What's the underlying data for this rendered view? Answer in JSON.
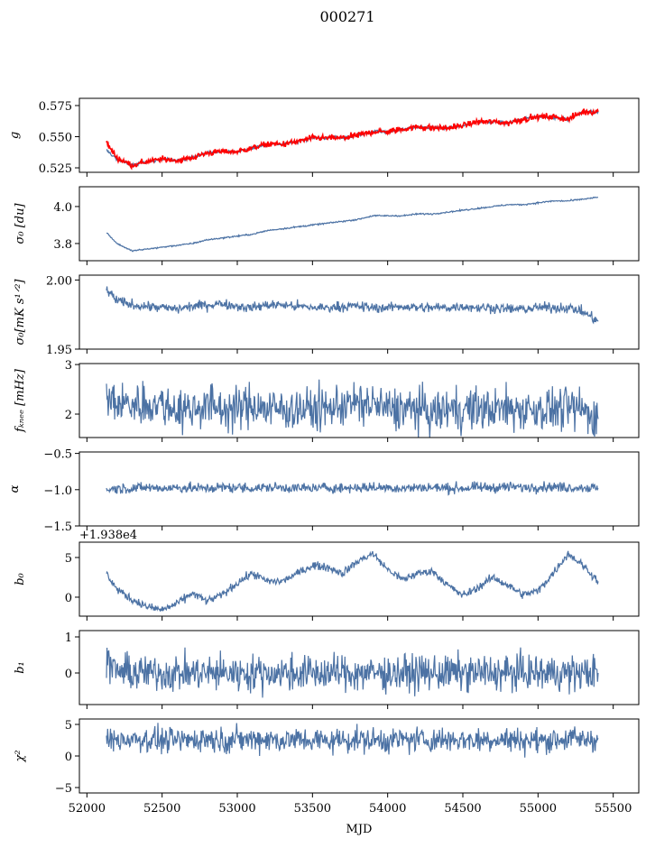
{
  "chart_data": {
    "type": "line",
    "title": "000271",
    "xlabel": "MJD",
    "xlim": [
      51950,
      55670
    ],
    "xticks": [
      52000,
      52500,
      53000,
      53500,
      54000,
      54500,
      55000,
      55500
    ],
    "xtick_labels": [
      "52000",
      "52500",
      "53000",
      "53500",
      "54000",
      "54500",
      "55000",
      "55500"
    ],
    "x": [
      52130,
      52200,
      52300,
      52400,
      52500,
      52600,
      52700,
      52800,
      52900,
      53000,
      53100,
      53200,
      53300,
      53400,
      53500,
      53600,
      53700,
      53800,
      53900,
      54000,
      54100,
      54200,
      54300,
      54400,
      54500,
      54600,
      54700,
      54800,
      54900,
      55000,
      55100,
      55200,
      55300,
      55400
    ],
    "panels": [
      {
        "ylabel": "g",
        "ylim": [
          0.5214,
          0.5808
        ],
        "yticks": [
          0.525,
          0.55,
          0.575
        ],
        "ytick_labels": [
          "0.525",
          "0.550",
          "0.575"
        ],
        "series": [
          {
            "name": "g-model",
            "color": "#4c72a4",
            "noise_std": 0.0006,
            "values": [
              0.539,
              0.532,
              0.527,
              0.53,
              0.532,
              0.531,
              0.533,
              0.537,
              0.538,
              0.538,
              0.541,
              0.544,
              0.544,
              0.546,
              0.549,
              0.549,
              0.549,
              0.551,
              0.554,
              0.554,
              0.556,
              0.558,
              0.557,
              0.557,
              0.559,
              0.562,
              0.562,
              0.561,
              0.564,
              0.566,
              0.566,
              0.564,
              0.57,
              0.57
            ]
          },
          {
            "name": "g-data",
            "color": "#ff0000",
            "noise_std": 0.0012,
            "values": [
              0.545,
              0.533,
              0.527,
              0.53,
              0.532,
              0.531,
              0.533,
              0.537,
              0.538,
              0.538,
              0.541,
              0.544,
              0.544,
              0.546,
              0.549,
              0.549,
              0.549,
              0.551,
              0.554,
              0.554,
              0.556,
              0.558,
              0.557,
              0.557,
              0.559,
              0.562,
              0.562,
              0.561,
              0.564,
              0.566,
              0.566,
              0.564,
              0.57,
              0.57
            ]
          }
        ]
      },
      {
        "ylabel": "σ₀ [du]",
        "ylim": [
          3.707,
          4.107
        ],
        "yticks": [
          3.8,
          4.0
        ],
        "ytick_labels": [
          "3.8",
          "4.0"
        ],
        "series": [
          {
            "name": "sigma0-du",
            "color": "#4c72a4",
            "noise_std": 0.002,
            "values": [
              3.86,
              3.8,
              3.76,
              3.77,
              3.78,
              3.79,
              3.8,
              3.82,
              3.83,
              3.84,
              3.85,
              3.87,
              3.88,
              3.89,
              3.9,
              3.91,
              3.92,
              3.93,
              3.95,
              3.95,
              3.95,
              3.96,
              3.96,
              3.97,
              3.98,
              3.99,
              4.0,
              4.01,
              4.01,
              4.02,
              4.03,
              4.03,
              4.04,
              4.05
            ]
          }
        ]
      },
      {
        "ylabel": "σ₀[mK s¹ᐟ²]",
        "ylim": [
          1.95,
          2.0035
        ],
        "yticks": [
          1.95,
          2.0
        ],
        "ytick_labels": [
          "1.95",
          "2.00"
        ],
        "series": [
          {
            "name": "sigma0-mk",
            "color": "#4c72a4",
            "noise_std": 0.0018,
            "values": [
              1.993,
              1.985,
              1.982,
              1.981,
              1.98,
              1.979,
              1.981,
              1.982,
              1.983,
              1.981,
              1.98,
              1.982,
              1.982,
              1.981,
              1.98,
              1.98,
              1.981,
              1.981,
              1.98,
              1.98,
              1.981,
              1.98,
              1.98,
              1.98,
              1.981,
              1.98,
              1.98,
              1.979,
              1.979,
              1.98,
              1.98,
              1.98,
              1.977,
              1.97
            ]
          }
        ]
      },
      {
        "ylabel": "fₖₙₑₑ [mHz]",
        "ylim": [
          1.527,
          3.02
        ],
        "yticks": [
          2,
          3
        ],
        "ytick_labels": [
          "2",
          "3"
        ],
        "series": [
          {
            "name": "fknee",
            "color": "#4c72a4",
            "noise_std": 0.22,
            "values": [
              2.3,
              2.2,
              2.2,
              2.2,
              2.2,
              2.1,
              2.1,
              2.2,
              2.1,
              2.1,
              2.2,
              2.1,
              2.1,
              2.1,
              2.1,
              2.1,
              2.2,
              2.2,
              2.2,
              2.1,
              2.1,
              2.1,
              2.0,
              2.1,
              2.1,
              2.1,
              2.1,
              2.1,
              2.1,
              2.1,
              2.1,
              2.1,
              2.1,
              1.9
            ]
          }
        ]
      },
      {
        "ylabel": "α",
        "ylim": [
          -1.5,
          -0.48
        ],
        "yticks": [
          -1.5,
          -1.0,
          -0.5
        ],
        "ytick_labels": [
          "−1.5",
          "−1.0",
          "−0.5"
        ],
        "series": [
          {
            "name": "alpha",
            "color": "#4c72a4",
            "noise_std": 0.035,
            "values": [
              -1.0,
              -0.98,
              -0.98,
              -0.97,
              -0.98,
              -0.97,
              -0.98,
              -0.98,
              -0.97,
              -0.97,
              -0.98,
              -0.97,
              -0.97,
              -0.98,
              -0.98,
              -0.97,
              -0.98,
              -0.97,
              -0.97,
              -0.97,
              -0.98,
              -0.97,
              -0.97,
              -0.98,
              -0.98,
              -0.97,
              -0.97,
              -0.96,
              -0.97,
              -0.96,
              -0.96,
              -0.97,
              -0.97,
              -0.98
            ]
          }
        ]
      },
      {
        "ylabel": "b₀",
        "offset_text": "+1.938e4",
        "ylim": [
          -2.39,
          6.93
        ],
        "yticks": [
          0,
          5
        ],
        "ytick_labels": [
          "0",
          "5"
        ],
        "series": [
          {
            "name": "b0",
            "color": "#4c72a4",
            "noise_std": 0.25,
            "values": [
              3.0,
              1.0,
              -0.3,
              -1.2,
              -1.6,
              -0.8,
              0.5,
              -0.5,
              0.3,
              1.8,
              3.0,
              2.0,
              2.0,
              3.0,
              4.0,
              3.8,
              3.0,
              4.5,
              5.5,
              3.5,
              2.2,
              3.0,
              3.3,
              1.5,
              0.2,
              1.2,
              2.5,
              1.5,
              0.3,
              0.8,
              3.0,
              5.5,
              4.0,
              2.0
            ]
          }
        ]
      },
      {
        "ylabel": "b₁",
        "ylim": [
          -0.875,
          1.175
        ],
        "yticks": [
          0,
          1
        ],
        "ytick_labels": [
          "0",
          "1"
        ],
        "series": [
          {
            "name": "b1",
            "color": "#4c72a4",
            "noise_std": 0.25,
            "values": [
              0.3,
              0.05,
              0.0,
              0.0,
              0.0,
              0.0,
              0.0,
              0.0,
              0.0,
              0.0,
              0.0,
              0.0,
              0.0,
              0.0,
              0.0,
              0.0,
              0.0,
              0.0,
              0.0,
              0.0,
              0.0,
              0.0,
              0.0,
              0.0,
              0.0,
              0.0,
              0.0,
              0.0,
              0.0,
              0.0,
              0.0,
              0.0,
              0.0,
              0.0
            ]
          }
        ]
      },
      {
        "ylabel": "χ²",
        "ylim": [
          -5.86,
          5.86
        ],
        "yticks": [
          -5,
          0,
          5
        ],
        "ytick_labels": [
          "−5",
          "0",
          "5"
        ],
        "series": [
          {
            "name": "chi2",
            "color": "#4c72a4",
            "noise_std": 1.0,
            "values": [
              2.5,
              2.5,
              2.8,
              2.6,
              2.5,
              2.4,
              2.6,
              2.8,
              2.5,
              2.6,
              2.7,
              2.7,
              2.5,
              2.6,
              2.5,
              2.4,
              2.6,
              2.6,
              2.5,
              2.5,
              2.6,
              2.6,
              2.5,
              2.7,
              2.6,
              2.5,
              2.7,
              2.6,
              2.5,
              2.4,
              2.6,
              2.7,
              2.6,
              2.8
            ]
          }
        ]
      }
    ]
  }
}
